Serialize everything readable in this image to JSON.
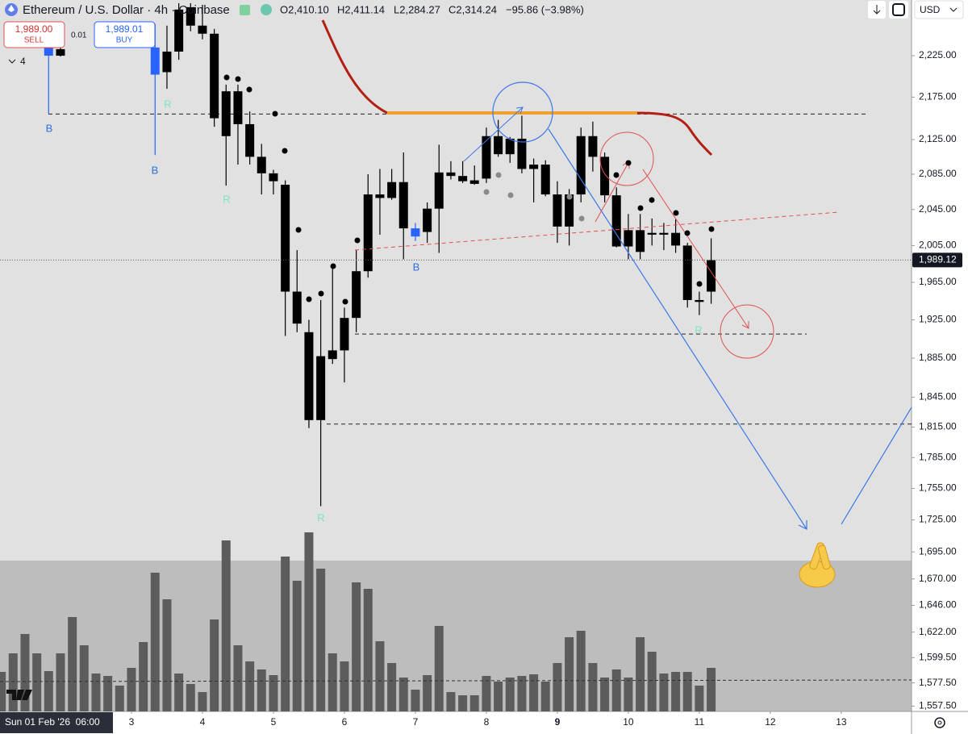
{
  "header": {
    "symbol": "Ethereum / U.S. Dollar · 4h · Coinbase",
    "open": "O2,410.10",
    "high": "H2,411.14",
    "low": "L2,284.27",
    "close": "C2,314.24",
    "change": "−95.86 (−3.98%)"
  },
  "trade": {
    "sell_price": "1,989.00",
    "sell": "SELL",
    "spread": "0.01",
    "buy_price": "1,989.01",
    "buy": "BUY",
    "quantity": "4"
  },
  "toolbar": {
    "currency": "USD"
  },
  "chart_data": {
    "type": "candlestick",
    "log": true,
    "xlim": [
      1.148,
      13.99
    ],
    "xticks": [
      3,
      4,
      5,
      6,
      7,
      8,
      {
        "value": 9,
        "label": "9",
        "bold": true
      },
      10,
      11,
      12,
      13
    ],
    "cursor_label": "Sun 01 Feb '26  06:00",
    "ylim": [
      1553,
      2294
    ],
    "yticks": [
      {
        "value": 2225,
        "label": "2,225.00"
      },
      {
        "value": 2175,
        "label": "2,175.00"
      },
      {
        "value": 2125,
        "label": "2,125.00"
      },
      {
        "value": 2085,
        "label": "2,085.00"
      },
      {
        "value": 2045,
        "label": "2,045.00"
      },
      {
        "value": 2005,
        "label": "2,005.00"
      },
      {
        "value": 1965,
        "label": "1,965.00"
      },
      {
        "value": 1925,
        "label": "1,925.00"
      },
      {
        "value": 1885,
        "label": "1,885.00"
      },
      {
        "value": 1845,
        "label": "1,845.00"
      },
      {
        "value": 1815,
        "label": "1,815.00"
      },
      {
        "value": 1785,
        "label": "1,785.00"
      },
      {
        "value": 1755,
        "label": "1,755.00"
      },
      {
        "value": 1725,
        "label": "1,725.00"
      },
      {
        "value": 1695,
        "label": "1,695.00"
      },
      {
        "value": 1670,
        "label": "1,670.00"
      },
      {
        "value": 1646,
        "label": "1,646.00"
      },
      {
        "value": 1622,
        "label": "1,622.00"
      },
      {
        "value": 1599.5,
        "label": "1,599.50"
      },
      {
        "value": 1577.5,
        "label": "1,577.50"
      },
      {
        "value": 1557.5,
        "label": "1,557.50"
      }
    ],
    "x": [
      1.833,
      2.0,
      3.333,
      3.5,
      3.667,
      3.833,
      4.0,
      4.167,
      4.333,
      4.5,
      4.667,
      4.833,
      5.0,
      5.167,
      5.333,
      5.5,
      5.667,
      5.833,
      6.0,
      6.167,
      6.333,
      6.5,
      6.667,
      6.833,
      7.0,
      7.167,
      7.333,
      7.5,
      7.667,
      7.833,
      8.0,
      8.167,
      8.333,
      8.5,
      8.667,
      8.833,
      9.0,
      9.167,
      9.333,
      9.5,
      9.667,
      9.833,
      10.0,
      10.167,
      10.333,
      10.5,
      10.667,
      10.833,
      11.0,
      11.167
    ],
    "open": [
      2225,
      2233,
      2202,
      2230,
      2282,
      2285,
      2262,
      2252,
      2182,
      2182,
      2143,
      2105,
      2086,
      2073,
      1955,
      1912,
      1822,
      1884,
      1893,
      1927,
      1977,
      2062,
      2058,
      2076,
      2024,
      2020,
      2046,
      2087,
      2083,
      2078,
      2080,
      2129,
      2108,
      2126,
      2091,
      2096,
      2062,
      2026,
      2062,
      2129,
      2105,
      2061,
      2004,
      2022,
      2019,
      2017,
      2019,
      2005,
      1946,
      1955
    ],
    "high": [
      2240,
      2236,
      2264,
      2262,
      2290,
      2290,
      2288,
      2258,
      2190,
      2190,
      2158,
      2120,
      2090,
      2078,
      2000,
      1925,
      1946,
      1981,
      1938,
      2000,
      2085,
      2091,
      2091,
      2110,
      2030,
      2053,
      2119,
      2100,
      2100,
      2095,
      2139,
      2148,
      2128,
      2153,
      2103,
      2101,
      2077,
      2068,
      2139,
      2146,
      2110,
      2070,
      2040,
      2040,
      2035,
      2030,
      2034,
      2008,
      1955,
      2013
    ],
    "low": [
      2155,
      2224,
      2107,
      2185,
      2220,
      2255,
      2245,
      2140,
      2072,
      2096,
      2096,
      2062,
      2062,
      1908,
      1912,
      1814,
      1738,
      1879,
      1860,
      1912,
      1970,
      2017,
      2056,
      1990,
      2010,
      2008,
      1997,
      2079,
      2075,
      2073,
      2075,
      2105,
      2098,
      2086,
      2053,
      2060,
      2008,
      2005,
      2053,
      2088,
      2053,
      2003,
      1990,
      1990,
      2005,
      2000,
      1997,
      1938,
      1930,
      1942
    ],
    "close": [
      2235,
      2225,
      2235,
      2205,
      2230,
      2262,
      2252,
      2150,
      2129,
      2143,
      2105,
      2086,
      2077,
      1955,
      1921,
      1822,
      1887,
      1893,
      1927,
      1977,
      2062,
      2058,
      2076,
      2024,
      2015,
      2046,
      2087,
      2083,
      2077,
      2074,
      2129,
      2108,
      2126,
      2091,
      2096,
      2062,
      2026,
      2062,
      2129,
      2105,
      2061,
      2004,
      2022,
      1998,
      2017,
      2019,
      2005,
      1946,
      1944,
      1989
    ],
    "colors": [
      "#2962ff",
      "#000000",
      "#2962ff",
      "#000000",
      "#000000",
      "#000000",
      "#000000",
      "#000000",
      "#000000",
      "#000000",
      "#000000",
      "#000000",
      "#000000",
      "#000000",
      "#000000",
      "#000000",
      "#000000",
      "#000000",
      "#000000",
      "#000000",
      "#000000",
      "#000000",
      "#000000",
      "#000000",
      "#2962ff",
      "#000000",
      "#000000",
      "#000000",
      "#000000",
      "#000000",
      "#000000",
      "#000000",
      "#000000",
      "#000000",
      "#000000",
      "#000000",
      "#000000",
      "#000000",
      "#000000",
      "#000000",
      "#000000",
      "#000000",
      "#000000",
      "#000000",
      "#000000",
      "#000000",
      "#000000",
      "#000000",
      "#000000",
      "#000000"
    ],
    "last_price": {
      "value": 1989.12,
      "label": "1,989.12"
    },
    "levels": [
      2155,
      1910,
      1818
    ],
    "signals": [
      "B",
      "B",
      "R",
      "R",
      "R",
      "B",
      "R"
    ],
    "volume": {
      "color": "#5c5c5c",
      "x": [
        1.167,
        1.333,
        1.5,
        1.667,
        1.833,
        2.0,
        2.167,
        2.333,
        2.5,
        2.667,
        2.833,
        3.0,
        3.167,
        3.333,
        3.5,
        3.667,
        3.833,
        4.0,
        4.167,
        4.333,
        4.5,
        4.667,
        4.833,
        5.0,
        5.167,
        5.333,
        5.5,
        5.667,
        5.833,
        6.0,
        6.167,
        6.333,
        6.5,
        6.667,
        6.833,
        7.0,
        7.167,
        7.333,
        7.5,
        7.667,
        7.833,
        8.0,
        8.167,
        8.333,
        8.5,
        8.667,
        8.833,
        9.0,
        9.167,
        9.333,
        9.5,
        9.667,
        9.833,
        10.0,
        10.167,
        10.333,
        10.5,
        10.667,
        10.833,
        11.0,
        11.167
      ],
      "values": [
        49,
        72,
        96,
        72,
        50,
        72,
        117,
        82,
        47,
        44,
        32,
        54,
        86,
        172,
        139,
        47,
        34,
        24,
        114,
        212,
        82,
        62,
        52,
        45,
        192,
        162,
        222,
        177,
        72,
        62,
        160,
        152,
        87,
        60,
        42,
        27,
        45,
        106,
        24,
        20,
        20,
        44,
        37,
        42,
        44,
        46,
        37,
        60,
        92,
        100,
        60,
        42,
        52,
        42,
        92,
        74,
        47,
        49,
        49,
        32,
        54
      ]
    }
  }
}
